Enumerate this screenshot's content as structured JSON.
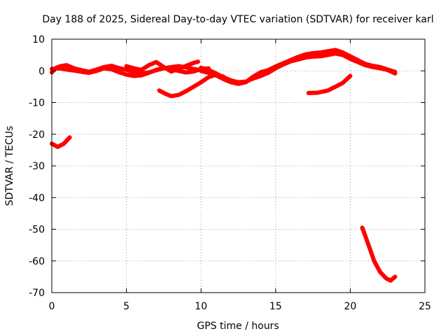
{
  "chart_data": {
    "type": "line",
    "title": "Day 188 of 2025, Sidereal Day-to-day VTEC variation (SDTVAR) for receiver karl",
    "xlabel": "GPS time / hours",
    "ylabel": "SDTVAR / TECUs",
    "xlim": [
      0,
      25
    ],
    "ylim": [
      -70,
      10
    ],
    "xticks": [
      0,
      5,
      10,
      15,
      20,
      25
    ],
    "yticks": [
      10,
      0,
      -10,
      -20,
      -30,
      -40,
      -50,
      -60,
      -70
    ],
    "grid": true,
    "series_color": "#ff0000",
    "series": [
      {
        "name": "track-1",
        "points": [
          [
            0,
            -0.5
          ],
          [
            0.3,
            1
          ],
          [
            0.6,
            1.5
          ],
          [
            1,
            1.8
          ],
          [
            1.5,
            0.8
          ],
          [
            2,
            0.2
          ],
          [
            2.5,
            -0.3
          ],
          [
            3,
            0.4
          ],
          [
            3.5,
            1.2
          ],
          [
            4,
            1.6
          ],
          [
            4.5,
            0.9
          ],
          [
            5,
            0.3
          ],
          [
            5.5,
            -0.4
          ],
          [
            6,
            -0.8
          ],
          [
            6.5,
            -0.5
          ],
          [
            7,
            0.2
          ],
          [
            7.5,
            0.8
          ],
          [
            8,
            1.2
          ],
          [
            8.5,
            1.5
          ],
          [
            9,
            1.1
          ],
          [
            9.5,
            0.6
          ],
          [
            10,
            0.2
          ],
          [
            10.5,
            -0.2
          ]
        ]
      },
      {
        "name": "track-2",
        "points": [
          [
            0,
            0.6
          ],
          [
            0.5,
            0.8
          ],
          [
            1,
            0.4
          ],
          [
            1.5,
            0.1
          ],
          [
            2,
            -0.3
          ],
          [
            2.5,
            -0.6
          ],
          [
            3,
            0
          ],
          [
            3.5,
            0.8
          ],
          [
            4,
            0.5
          ],
          [
            4.5,
            -0.4
          ],
          [
            5,
            -1.2
          ],
          [
            5.5,
            -1.6
          ],
          [
            6,
            -1.4
          ],
          [
            6.5,
            -0.6
          ],
          [
            7,
            0.3
          ],
          [
            7.5,
            1
          ],
          [
            8,
            0.6
          ],
          [
            8.5,
            0
          ],
          [
            9,
            -0.5
          ],
          [
            9.5,
            -0.2
          ],
          [
            10,
            0.6
          ],
          [
            10.5,
            0.8
          ]
        ]
      },
      {
        "name": "track-3",
        "points": [
          [
            5,
            1.5
          ],
          [
            5.5,
            0.8
          ],
          [
            6,
            0.3
          ],
          [
            6.5,
            1.8
          ],
          [
            7,
            2.8
          ],
          [
            7.5,
            1.2
          ],
          [
            8,
            -0.2
          ],
          [
            8.5,
            0.6
          ],
          [
            9,
            1.6
          ],
          [
            9.5,
            2.5
          ],
          [
            9.8,
            2.9
          ]
        ]
      },
      {
        "name": "track-4",
        "points": [
          [
            10,
            1
          ],
          [
            10.5,
            0.3
          ],
          [
            11,
            -0.8
          ],
          [
            11.5,
            -2
          ],
          [
            12,
            -3
          ],
          [
            12.5,
            -3.6
          ],
          [
            13,
            -3.4
          ],
          [
            13.5,
            -2.4
          ],
          [
            14,
            -1.6
          ],
          [
            14.5,
            -0.6
          ],
          [
            15,
            0.8
          ],
          [
            15.5,
            2
          ],
          [
            16,
            3
          ],
          [
            16.5,
            3.6
          ],
          [
            17,
            4.2
          ],
          [
            17.5,
            4.5
          ],
          [
            18,
            4.6
          ],
          [
            18.5,
            5
          ],
          [
            19,
            5.5
          ],
          [
            19.5,
            5
          ],
          [
            20,
            3.8
          ],
          [
            20.5,
            2.8
          ],
          [
            21,
            1.8
          ],
          [
            21.5,
            1.2
          ],
          [
            22,
            0.8
          ],
          [
            22.5,
            0.3
          ],
          [
            23,
            -0.8
          ]
        ]
      },
      {
        "name": "track-5",
        "points": [
          [
            10,
            0
          ],
          [
            10.5,
            -0.6
          ],
          [
            11,
            -1.4
          ],
          [
            11.5,
            -2.6
          ],
          [
            12,
            -3.6
          ],
          [
            12.5,
            -4.1
          ],
          [
            13,
            -3.6
          ],
          [
            13.5,
            -1.8
          ],
          [
            14,
            -0.4
          ],
          [
            14.5,
            0.2
          ],
          [
            15,
            1.4
          ],
          [
            15.5,
            2.4
          ],
          [
            16,
            3.4
          ],
          [
            16.5,
            4.4
          ],
          [
            17,
            5.2
          ],
          [
            17.5,
            5.6
          ],
          [
            18,
            5.8
          ],
          [
            18.5,
            6.2
          ],
          [
            19,
            6.6
          ],
          [
            19.5,
            5.8
          ],
          [
            20,
            4.6
          ],
          [
            20.5,
            3.4
          ],
          [
            21,
            2.2
          ],
          [
            21.5,
            1.6
          ],
          [
            22,
            1.2
          ],
          [
            22.5,
            0.4
          ],
          [
            23,
            -0.3
          ]
        ]
      },
      {
        "name": "track-6",
        "points": [
          [
            7.2,
            -6.2
          ],
          [
            7.6,
            -7.2
          ],
          [
            8,
            -8
          ],
          [
            8.5,
            -7.6
          ],
          [
            9,
            -6.4
          ],
          [
            9.5,
            -5
          ],
          [
            10,
            -3.6
          ],
          [
            10.5,
            -2
          ],
          [
            11,
            -1.2
          ],
          [
            11.5,
            -1.8
          ]
        ]
      },
      {
        "name": "track-7",
        "points": [
          [
            17.2,
            -7
          ],
          [
            17.8,
            -6.9
          ],
          [
            18.5,
            -6.2
          ],
          [
            19,
            -5
          ],
          [
            19.5,
            -3.8
          ],
          [
            20,
            -1.6
          ]
        ]
      },
      {
        "name": "track-8",
        "points": [
          [
            0,
            -23
          ],
          [
            0.4,
            -24
          ],
          [
            0.8,
            -23
          ],
          [
            1.2,
            -21
          ]
        ]
      },
      {
        "name": "track-9",
        "points": [
          [
            20.8,
            -49.5
          ],
          [
            21,
            -52
          ],
          [
            21.3,
            -56
          ],
          [
            21.6,
            -60
          ],
          [
            22,
            -63.5
          ],
          [
            22.4,
            -65.5
          ],
          [
            22.7,
            -66.2
          ],
          [
            23,
            -65
          ]
        ]
      }
    ]
  }
}
